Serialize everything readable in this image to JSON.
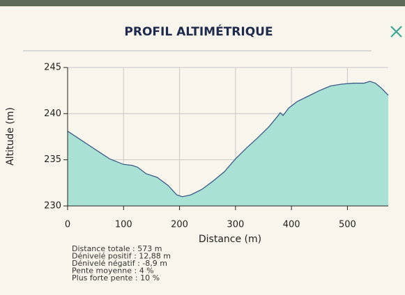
{
  "header": {
    "title": "PROFIL ALTIMÉTRIQUE"
  },
  "chart_data": {
    "type": "area",
    "xlabel": "Distance (m)",
    "ylabel": "Altitude (m)",
    "x": [
      0,
      10,
      25,
      50,
      75,
      100,
      115,
      125,
      140,
      160,
      180,
      195,
      205,
      220,
      240,
      260,
      280,
      300,
      320,
      340,
      360,
      375,
      380,
      385,
      395,
      410,
      430,
      450,
      470,
      490,
      510,
      530,
      540,
      550,
      560,
      573
    ],
    "values": [
      238.1,
      237.7,
      237.1,
      236.1,
      235.1,
      234.5,
      234.4,
      234.2,
      233.5,
      233.1,
      232.2,
      231.2,
      231.0,
      231.2,
      231.8,
      232.7,
      233.7,
      235.1,
      236.3,
      237.4,
      238.6,
      239.7,
      240.1,
      239.8,
      240.6,
      241.3,
      241.9,
      242.5,
      243.0,
      243.2,
      243.3,
      243.3,
      243.5,
      243.3,
      242.8,
      242.0
    ],
    "fill": "#a9e1d5",
    "color": "#3b5b86",
    "xlim": [
      0,
      573
    ],
    "ylim": [
      230,
      245
    ],
    "xticks": [
      0,
      100,
      200,
      300,
      400,
      500
    ],
    "yticks": [
      230,
      235,
      240,
      245
    ],
    "grid": true
  },
  "stats": [
    "Distance totale : 573 m",
    "Dénivelé positif : 12,88 m",
    "Dénivelé négatif : -8,9 m",
    "Pente moyenne : 4 %",
    "Plus forte pente : 10 %"
  ]
}
